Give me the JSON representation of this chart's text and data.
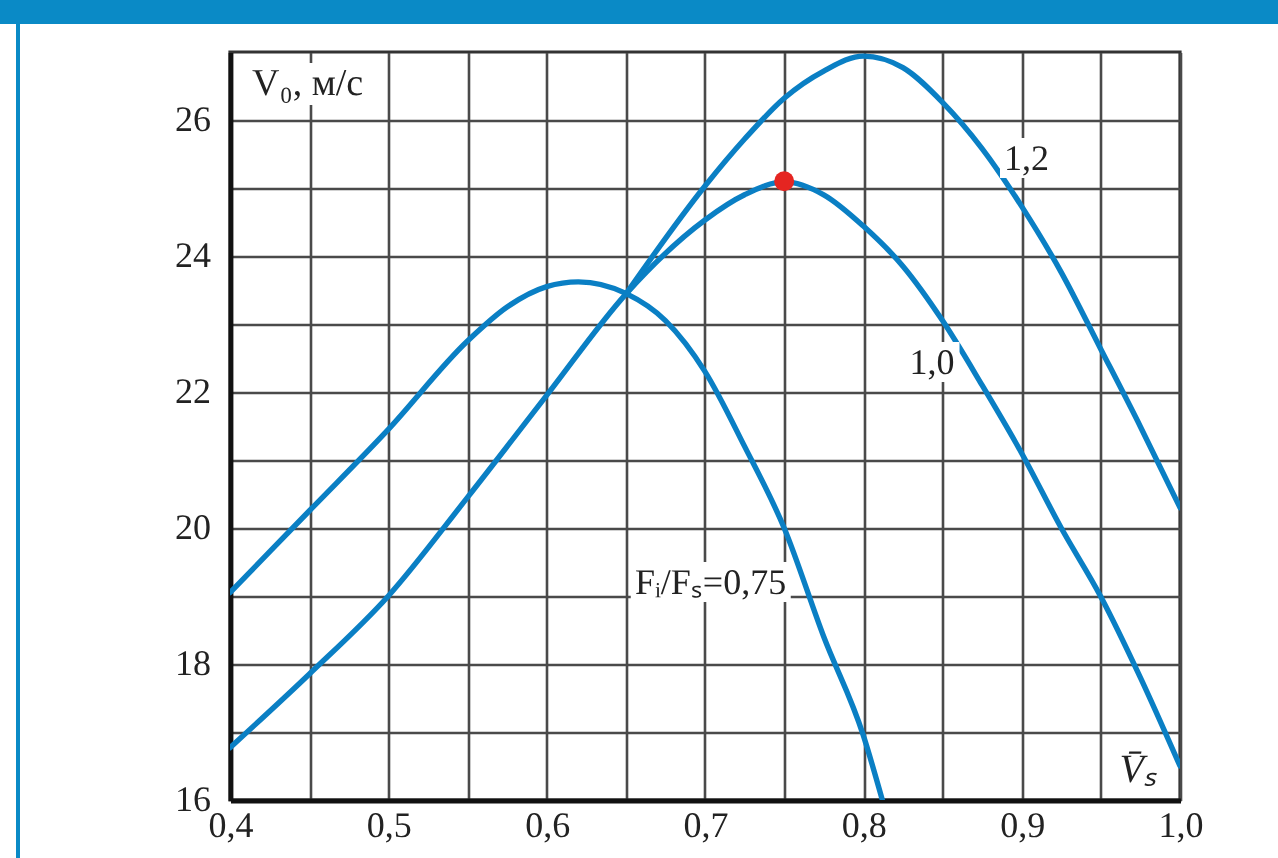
{
  "chart_data": {
    "type": "line",
    "xlabel": "V̄ₛ",
    "ylabel": "V₀, м/с",
    "xlim": [
      0.4,
      1.0
    ],
    "ylim": [
      16,
      27
    ],
    "xticks": [
      {
        "value": 0.4,
        "label": "0,4"
      },
      {
        "value": 0.45,
        "label": null
      },
      {
        "value": 0.5,
        "label": "0,5"
      },
      {
        "value": 0.55,
        "label": null
      },
      {
        "value": 0.6,
        "label": "0,6"
      },
      {
        "value": 0.65,
        "label": null
      },
      {
        "value": 0.7,
        "label": "0,7"
      },
      {
        "value": 0.75,
        "label": null
      },
      {
        "value": 0.8,
        "label": "0,8"
      },
      {
        "value": 0.85,
        "label": null
      },
      {
        "value": 0.9,
        "label": "0,9"
      },
      {
        "value": 0.95,
        "label": null
      },
      {
        "value": 1.0,
        "label": "1,0"
      }
    ],
    "yticks": [
      16,
      {
        "value": 17,
        "label": null
      },
      18,
      {
        "value": 19,
        "label": null
      },
      20,
      {
        "value": 21,
        "label": null
      },
      22,
      {
        "value": 23,
        "label": null
      },
      24,
      {
        "value": 25,
        "label": null
      },
      26
    ],
    "grid": true,
    "line_style": "solid",
    "series": [
      {
        "name": "Fᵢ/Fₛ=0,75",
        "color": "#0a7fc4",
        "x": [
          0.4,
          0.45,
          0.5,
          0.55,
          0.575,
          0.6,
          0.62,
          0.65,
          0.675,
          0.7,
          0.725,
          0.75,
          0.775,
          0.8,
          0.812
        ],
        "values": [
          19.05,
          20.25,
          21.45,
          22.75,
          23.25,
          23.55,
          23.62,
          23.45,
          23.05,
          22.3,
          21.2,
          20.0,
          18.4,
          16.95,
          16.0
        ]
      },
      {
        "name": "1,0",
        "color": "#0a7fc4",
        "x": [
          0.4,
          0.45,
          0.5,
          0.55,
          0.6,
          0.65,
          0.7,
          0.725,
          0.75,
          0.775,
          0.8,
          0.825,
          0.85,
          0.875,
          0.9,
          0.925,
          0.95,
          0.975,
          1.0
        ],
        "values": [
          16.77,
          17.85,
          19.0,
          20.45,
          21.95,
          23.44,
          24.53,
          24.9,
          25.09,
          24.9,
          24.44,
          23.85,
          23.05,
          22.1,
          21.1,
          20.0,
          18.99,
          17.8,
          16.5
        ]
      },
      {
        "name": "1,2",
        "color": "#0a7fc4",
        "x": [
          0.65,
          0.7,
          0.725,
          0.75,
          0.775,
          0.8,
          0.825,
          0.85,
          0.875,
          0.9,
          0.925,
          0.95,
          0.975,
          1.0
        ],
        "values": [
          23.44,
          25.03,
          25.72,
          26.32,
          26.72,
          26.94,
          26.77,
          26.26,
          25.58,
          24.73,
          23.76,
          22.63,
          21.49,
          20.3
        ]
      },
      {
        "type": "scatter",
        "marker": "circle",
        "color": "#e52521",
        "x": [
          0.75
        ],
        "values": [
          25.1
        ]
      }
    ]
  }
}
